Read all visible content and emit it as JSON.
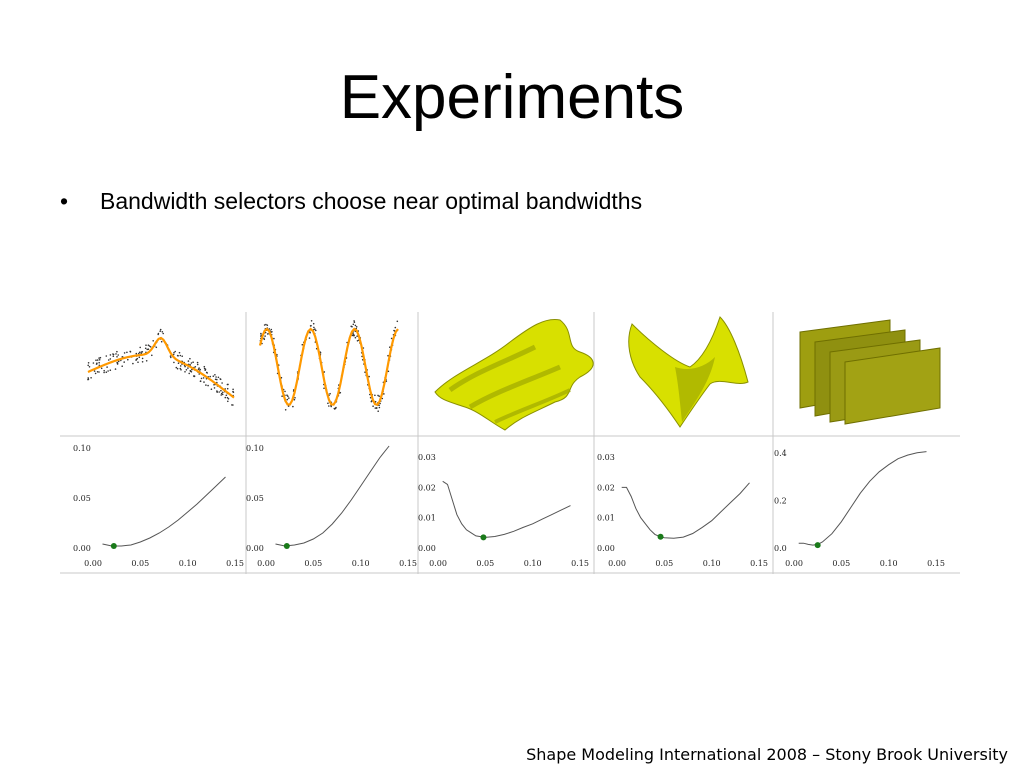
{
  "slide": {
    "title": "Experiments",
    "bullets": [
      "Bandwidth selectors choose near optimal bandwidths"
    ],
    "footer": "Shape Modeling International 2008 – Stony Brook University"
  },
  "figure": {
    "top_panels": [
      {
        "kind": "scatter-fit",
        "description": "noisy curve with fitted orange line"
      },
      {
        "kind": "scatter-fit",
        "description": "noisy sine wave with fitted orange line"
      },
      {
        "kind": "surface",
        "description": "yellow wavy surface"
      },
      {
        "kind": "surface",
        "description": "yellow saddle surface"
      },
      {
        "kind": "surface",
        "description": "olive stacked planes"
      }
    ],
    "colors": {
      "fit_line": "#ff9900",
      "noise": "#333333",
      "surface": "#d8e000",
      "planes": "#8e8e0a",
      "optimum": "#1a7a1a",
      "curve": "#555555"
    }
  },
  "chart_data": [
    {
      "type": "line",
      "x_ticks": [
        "0.00",
        "0.05",
        "0.10",
        "0.15"
      ],
      "y_ticks": [
        "0.00",
        "0.05",
        "0.10"
      ],
      "xlim": [
        0,
        0.15
      ],
      "ylim": [
        0,
        0.1
      ],
      "x": [
        0.01,
        0.02,
        0.03,
        0.04,
        0.05,
        0.06,
        0.07,
        0.08,
        0.09,
        0.1,
        0.11,
        0.12,
        0.13,
        0.14
      ],
      "y": [
        0.004,
        0.002,
        0.002,
        0.003,
        0.006,
        0.01,
        0.015,
        0.021,
        0.028,
        0.036,
        0.044,
        0.053,
        0.062,
        0.071
      ],
      "optimum": {
        "x": 0.022,
        "y": 0.002
      }
    },
    {
      "type": "line",
      "x_ticks": [
        "0.00",
        "0.05",
        "0.10",
        "0.15"
      ],
      "y_ticks": [
        "0.00",
        "0.05",
        "0.10"
      ],
      "xlim": [
        0,
        0.15
      ],
      "ylim": [
        0,
        0.1
      ],
      "x": [
        0.01,
        0.02,
        0.03,
        0.04,
        0.05,
        0.06,
        0.07,
        0.08,
        0.09,
        0.1,
        0.11,
        0.12,
        0.13
      ],
      "y": [
        0.004,
        0.002,
        0.003,
        0.005,
        0.009,
        0.015,
        0.024,
        0.035,
        0.048,
        0.062,
        0.076,
        0.09,
        0.102
      ],
      "optimum": {
        "x": 0.022,
        "y": 0.002
      }
    },
    {
      "type": "line",
      "x_ticks": [
        "0.00",
        "0.05",
        "0.10",
        "0.15"
      ],
      "y_ticks": [
        "0.00",
        "0.01",
        "0.02",
        "0.03"
      ],
      "xlim": [
        0,
        0.15
      ],
      "ylim": [
        0,
        0.033
      ],
      "x": [
        0.005,
        0.01,
        0.015,
        0.02,
        0.025,
        0.03,
        0.035,
        0.04,
        0.05,
        0.06,
        0.07,
        0.08,
        0.09,
        0.1,
        0.11,
        0.12,
        0.13,
        0.14
      ],
      "y": [
        0.022,
        0.021,
        0.016,
        0.011,
        0.008,
        0.006,
        0.005,
        0.004,
        0.0035,
        0.0038,
        0.0045,
        0.0055,
        0.0068,
        0.008,
        0.0095,
        0.011,
        0.0125,
        0.014
      ],
      "optimum": {
        "x": 0.048,
        "y": 0.0035
      }
    },
    {
      "type": "line",
      "x_ticks": [
        "0.00",
        "0.05",
        "0.10",
        "0.15"
      ],
      "y_ticks": [
        "0.00",
        "0.01",
        "0.02",
        "0.03"
      ],
      "xlim": [
        0,
        0.15
      ],
      "ylim": [
        0,
        0.033
      ],
      "x": [
        0.005,
        0.01,
        0.015,
        0.02,
        0.025,
        0.03,
        0.035,
        0.04,
        0.045,
        0.05,
        0.06,
        0.07,
        0.08,
        0.09,
        0.1,
        0.11,
        0.12,
        0.13,
        0.14
      ],
      "y": [
        0.02,
        0.02,
        0.017,
        0.013,
        0.01,
        0.008,
        0.006,
        0.0045,
        0.0038,
        0.0034,
        0.0032,
        0.0036,
        0.0048,
        0.0068,
        0.009,
        0.012,
        0.015,
        0.018,
        0.0215
      ],
      "optimum": {
        "x": 0.046,
        "y": 0.0037
      }
    },
    {
      "type": "line",
      "x_ticks": [
        "0.00",
        "0.05",
        "0.10",
        "0.15"
      ],
      "y_ticks": [
        "0.0",
        "0.2",
        "0.4"
      ],
      "xlim": [
        0,
        0.15
      ],
      "ylim": [
        0,
        0.42
      ],
      "x": [
        0.005,
        0.01,
        0.015,
        0.02,
        0.025,
        0.03,
        0.04,
        0.05,
        0.06,
        0.07,
        0.08,
        0.09,
        0.1,
        0.11,
        0.12,
        0.13,
        0.14
      ],
      "y": [
        0.02,
        0.02,
        0.015,
        0.012,
        0.015,
        0.025,
        0.06,
        0.11,
        0.17,
        0.23,
        0.28,
        0.32,
        0.35,
        0.375,
        0.39,
        0.4,
        0.405
      ],
      "optimum": {
        "x": 0.025,
        "y": 0.012
      }
    }
  ]
}
